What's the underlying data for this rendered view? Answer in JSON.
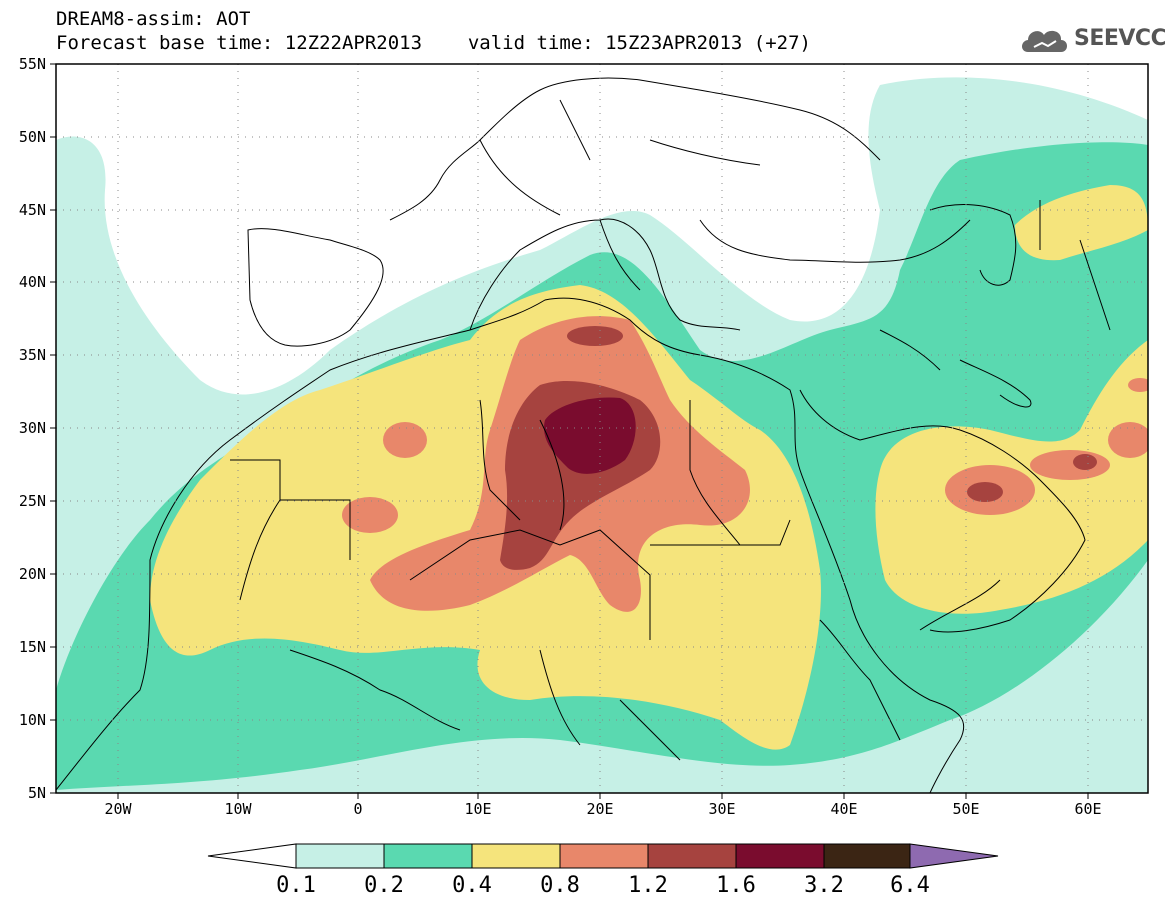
{
  "header": {
    "model_line": "DREAM8-assim: AOT",
    "base_time_label": "Forecast base time: 12Z22APR2013",
    "valid_time_label": "valid time: 15Z23APR2013 (+27)"
  },
  "logo": {
    "text": "SEEVCCC",
    "icon": "cloud-logo-icon"
  },
  "axes": {
    "lat_ticks": [
      "55N",
      "50N",
      "45N",
      "40N",
      "35N",
      "30N",
      "25N",
      "20N",
      "15N",
      "10N",
      "5N"
    ],
    "lon_ticks": [
      "20W",
      "10W",
      "0",
      "10E",
      "20E",
      "30E",
      "40E",
      "50E",
      "60E"
    ]
  },
  "colorbar": {
    "labels": [
      "0.1",
      "0.2",
      "0.4",
      "0.8",
      "1.2",
      "1.6",
      "3.2",
      "6.4"
    ],
    "colors": [
      "#c6f0e6",
      "#5ad9b0",
      "#f5e47c",
      "#e8876a",
      "#a6433f",
      "#7a0c2e",
      "#3b2514",
      "#8e6ab0"
    ]
  },
  "colors": {
    "level_0_1": "#c6f0e6",
    "level_0_2": "#5ad9b0",
    "level_0_4": "#f5e47c",
    "level_0_8": "#e8876a",
    "level_1_2": "#a6433f",
    "level_1_6": "#7a0c2e"
  }
}
